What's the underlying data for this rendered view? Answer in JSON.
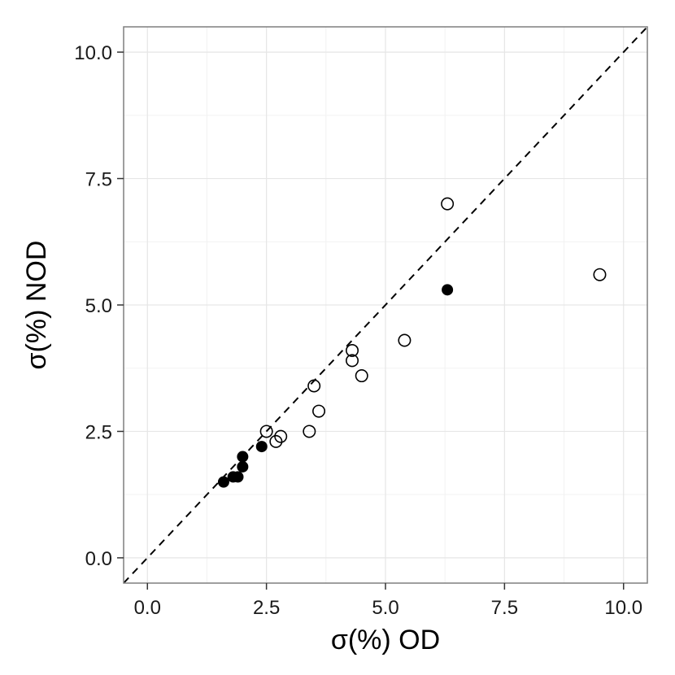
{
  "chart_data": {
    "type": "scatter",
    "title": "",
    "xlabel": "σ(%)  OD",
    "ylabel": "σ(%)  NOD",
    "xlim": [
      -0.5,
      10.5
    ],
    "ylim": [
      -0.5,
      10.5
    ],
    "x_ticks": [
      0.0,
      2.5,
      5.0,
      7.5,
      10.0
    ],
    "y_ticks": [
      0.0,
      2.5,
      5.0,
      7.5,
      10.0
    ],
    "x_tick_labels": [
      "0.0",
      "2.5",
      "5.0",
      "7.5",
      "10.0"
    ],
    "y_tick_labels": [
      "0.0",
      "2.5",
      "5.0",
      "7.5",
      "10.0"
    ],
    "grid": true,
    "reference_line": {
      "type": "identity",
      "style": "dashed",
      "color": "#000000"
    },
    "series": [
      {
        "marker": "filled-circle",
        "color": "#000000",
        "points": [
          [
            1.6,
            1.5
          ],
          [
            1.8,
            1.6
          ],
          [
            1.9,
            1.6
          ],
          [
            2.0,
            1.8
          ],
          [
            2.0,
            2.0
          ],
          [
            2.4,
            2.2
          ],
          [
            6.3,
            5.3
          ]
        ]
      },
      {
        "marker": "open-circle",
        "color": "#000000",
        "points": [
          [
            2.5,
            2.5
          ],
          [
            2.7,
            2.3
          ],
          [
            2.8,
            2.4
          ],
          [
            3.4,
            2.5
          ],
          [
            3.5,
            3.4
          ],
          [
            3.6,
            2.9
          ],
          [
            4.3,
            4.1
          ],
          [
            4.3,
            3.9
          ],
          [
            4.5,
            3.6
          ],
          [
            5.4,
            4.3
          ],
          [
            6.3,
            7.0
          ],
          [
            9.5,
            5.6
          ]
        ]
      }
    ]
  }
}
